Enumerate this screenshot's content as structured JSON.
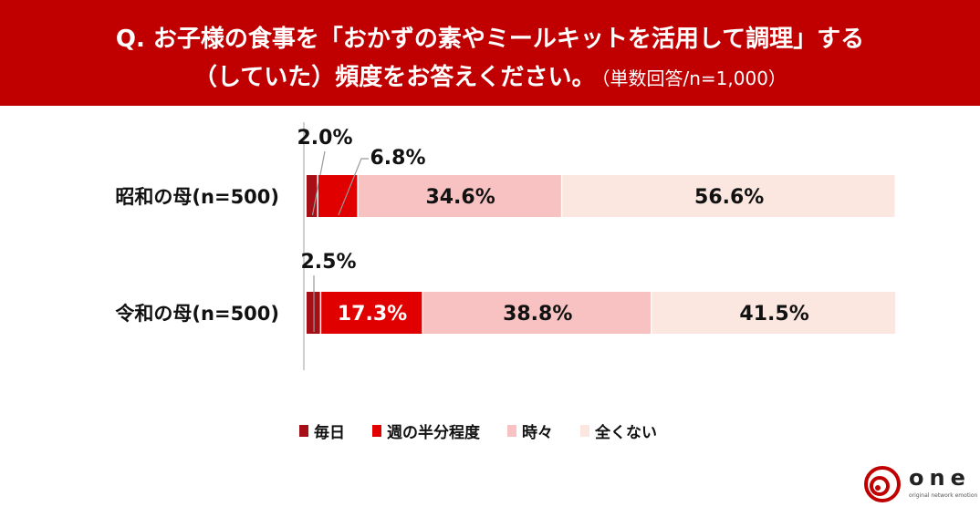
{
  "header": {
    "line1": "Q. お子様の食事を「おかずの素やミールキットを活用して調理」する",
    "line2": "（していた）頻度をお答えください。",
    "note": "（単数回答/n=1,000）"
  },
  "chart_data": {
    "type": "bar",
    "orientation": "horizontal",
    "stacked": "100%",
    "categories": [
      "昭和の母(n=500)",
      "令和の母(n=500)"
    ],
    "series": [
      {
        "name": "毎日",
        "values": [
          2.0,
          2.5
        ],
        "labels": [
          "2.0%",
          "2.5%"
        ],
        "color": "#a50f15"
      },
      {
        "name": "週の半分程度",
        "values": [
          6.8,
          17.3
        ],
        "labels": [
          "6.8%",
          "17.3%"
        ],
        "color": "#e00000"
      },
      {
        "name": "時々",
        "values": [
          34.6,
          38.8
        ],
        "labels": [
          "34.6%",
          "38.8%"
        ],
        "color": "#f8c2c2"
      },
      {
        "name": "全くない",
        "values": [
          56.6,
          41.5
        ],
        "labels": [
          "56.6%",
          "41.5%"
        ],
        "color": "#fbe7df"
      }
    ],
    "unit": "%",
    "xlim": [
      0,
      100
    ],
    "legend_position": "bottom"
  },
  "logo": {
    "text": "one",
    "tagline": "original network emotion",
    "ring_color": "#c00000"
  }
}
